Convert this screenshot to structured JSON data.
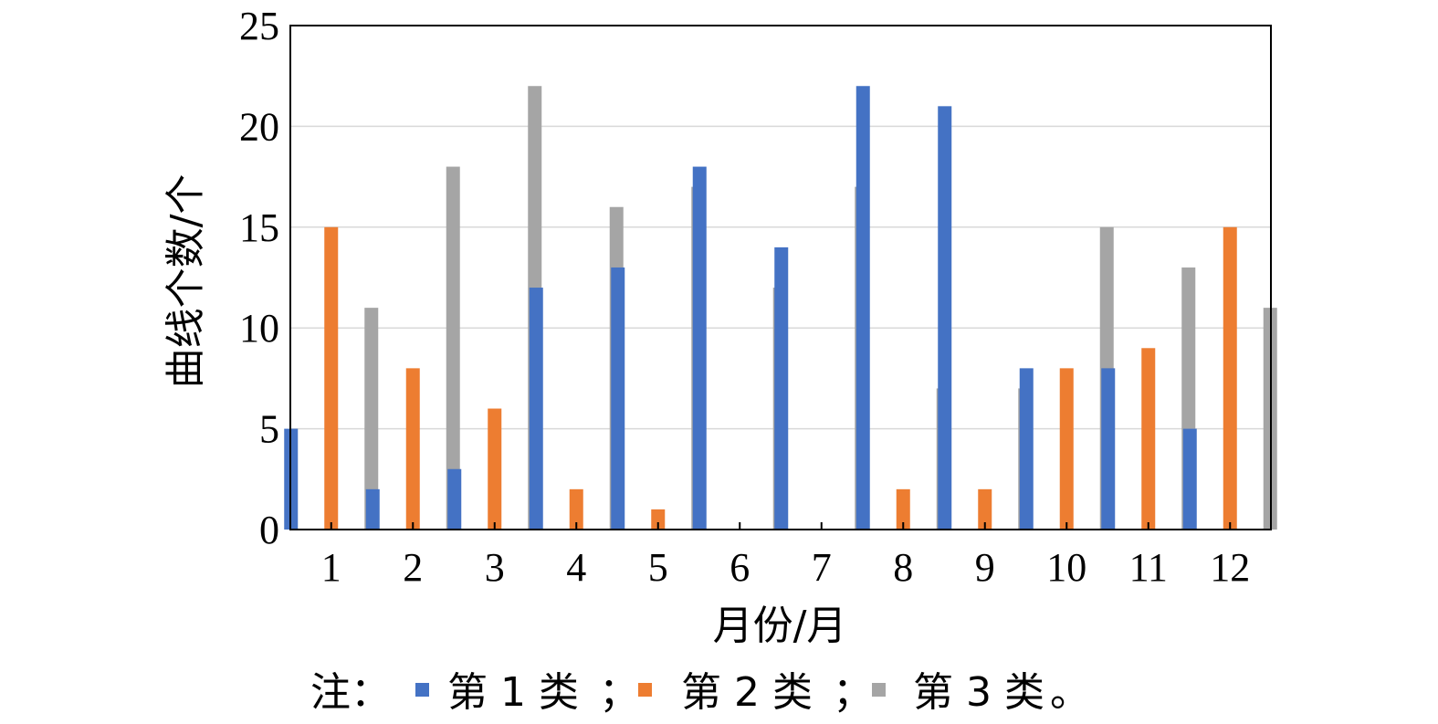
{
  "chart_data": {
    "type": "bar",
    "categories": [
      "1",
      "2",
      "3",
      "4",
      "5",
      "6",
      "7",
      "8",
      "9",
      "10",
      "11",
      "12"
    ],
    "series": [
      {
        "name": "第 1 类",
        "color": "#4472C4",
        "values": [
          5,
          2,
          3,
          12,
          13,
          18,
          14,
          22,
          21,
          8,
          8,
          5
        ]
      },
      {
        "name": "第 2 类",
        "color": "#ED7D31",
        "values": [
          15,
          8,
          6,
          2,
          1,
          0,
          0,
          2,
          2,
          8,
          9,
          15
        ]
      },
      {
        "name": "第 3 类",
        "color": "#A5A5A5",
        "values": [
          11,
          18,
          22,
          16,
          17,
          12,
          17,
          7,
          7,
          15,
          13,
          11
        ]
      }
    ],
    "xlabel": "月份/月",
    "ylabel": "曲线个数/个",
    "ylim": [
      0,
      25
    ],
    "yticks": [
      0,
      5,
      10,
      15,
      20,
      25
    ],
    "grid": true,
    "legend": {
      "prefix": "注：",
      "separator": "；",
      "suffix": "。",
      "placement": "bottom"
    }
  }
}
